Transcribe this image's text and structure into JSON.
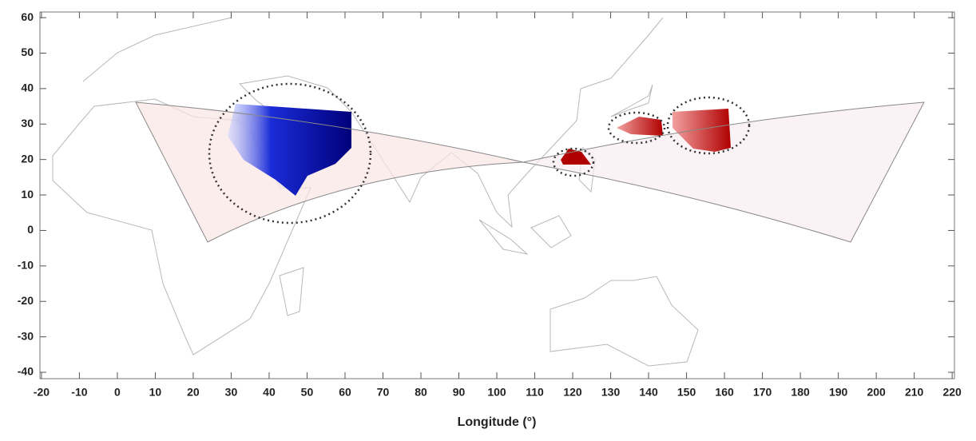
{
  "chart_data": {
    "type": "map",
    "x_label": "Longitude (°)",
    "xlim": [
      -20.4,
      220.6
    ],
    "ylim": [
      -41.8,
      61.6
    ],
    "xticks": [
      -20,
      -10,
      0,
      10,
      20,
      30,
      40,
      50,
      60,
      70,
      80,
      90,
      100,
      110,
      120,
      130,
      140,
      150,
      160,
      170,
      180,
      190,
      200,
      210,
      220
    ],
    "yticks": [
      60,
      50,
      40,
      30,
      20,
      10,
      0,
      -10,
      -20,
      -30,
      -40
    ]
  }
}
